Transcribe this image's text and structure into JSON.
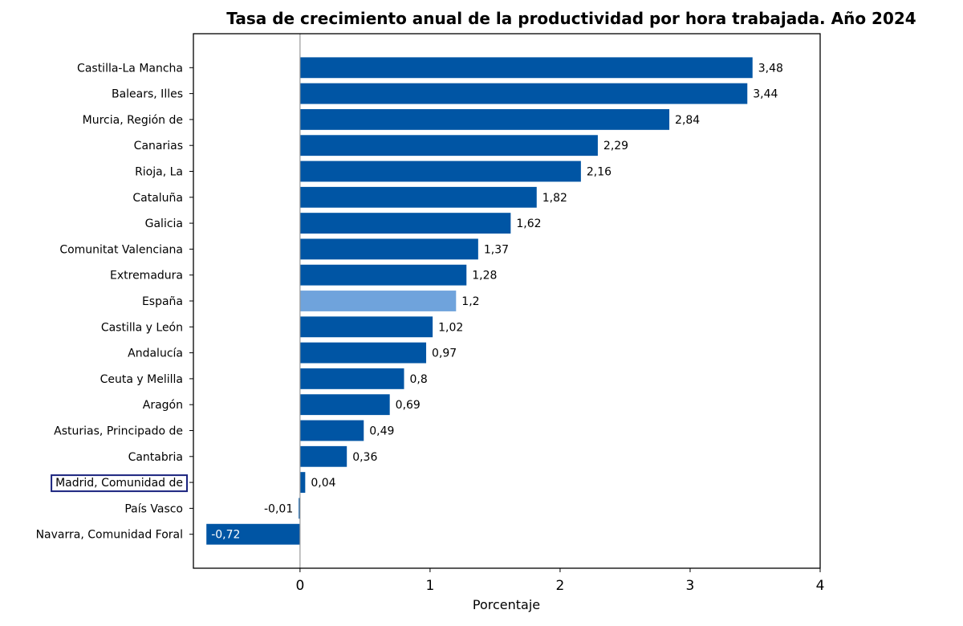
{
  "chart_data": {
    "type": "bar",
    "orientation": "horizontal",
    "title": "Tasa de crecimiento anual de la productividad por hora trabajada. Año 2024",
    "xlabel": "Porcentaje",
    "ylabel": "",
    "xlim": [
      -0.82,
      4
    ],
    "xticks": [
      0,
      1,
      2,
      3,
      4
    ],
    "xtick_labels": [
      "0",
      "1",
      "2",
      "3",
      "4"
    ],
    "grid": false,
    "categories": [
      "Castilla-La Mancha",
      "Balears, Illes",
      "Murcia, Región de",
      "Canarias",
      "Rioja, La",
      "Cataluña",
      "Galicia",
      "Comunitat Valenciana",
      "Extremadura",
      "España",
      "Castilla y León",
      "Andalucía",
      "Ceuta y Melilla",
      "Aragón",
      "Asturias, Principado de",
      "Cantabria",
      "Madrid, Comunidad de",
      "País Vasco",
      "Navarra, Comunidad Foral"
    ],
    "values": [
      3.48,
      3.44,
      2.84,
      2.29,
      2.16,
      1.82,
      1.62,
      1.37,
      1.28,
      1.2,
      1.02,
      0.97,
      0.8,
      0.69,
      0.49,
      0.36,
      0.04,
      -0.01,
      -0.72
    ],
    "value_labels": [
      "3,48",
      "3,44",
      "2,84",
      "2,29",
      "2,16",
      "1,82",
      "1,62",
      "1,37",
      "1,28",
      "1,2",
      "1,02",
      "0,97",
      "0,8",
      "0,69",
      "0,49",
      "0,36",
      "0,04",
      "-0,01",
      "-0,72"
    ],
    "highlighted_bar": "España",
    "boxed_label": "Madrid, Comunidad de",
    "colors": {
      "bar": "#0055a4",
      "highlight": "#6fa3dc",
      "label_box": "#1a237e",
      "zero_line": "#999999"
    }
  }
}
